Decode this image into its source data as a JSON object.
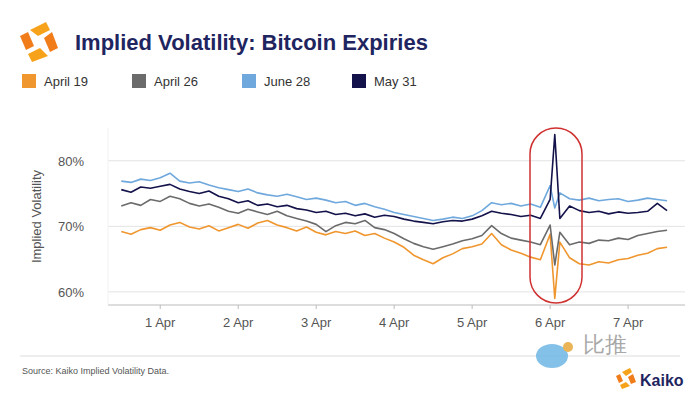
{
  "chart_data": {
    "type": "line",
    "title": "Implied Volatility: Bitcoin Expiries",
    "y_label": "Implied Volatility",
    "source": "Source: Kaiko Implied Volatility Data.",
    "brand": "Kaiko",
    "watermark": "比推",
    "x": [
      0.5,
      0.625,
      0.75,
      0.875,
      1.0,
      1.125,
      1.25,
      1.375,
      1.5,
      1.625,
      1.75,
      1.875,
      2.0,
      2.125,
      2.25,
      2.375,
      2.5,
      2.625,
      2.75,
      2.875,
      3.0,
      3.125,
      3.25,
      3.375,
      3.5,
      3.625,
      3.75,
      3.875,
      4.0,
      4.125,
      4.25,
      4.375,
      4.5,
      4.625,
      4.75,
      4.875,
      5.0,
      5.125,
      5.25,
      5.375,
      5.5,
      5.625,
      5.75,
      5.875,
      6.0,
      6.06,
      6.125,
      6.25,
      6.375,
      6.5,
      6.625,
      6.75,
      6.875,
      7.0,
      7.125,
      7.25,
      7.375,
      7.5
    ],
    "series": [
      {
        "name": "April 19",
        "color": "#f0962e",
        "values": [
          69.2,
          68.8,
          69.5,
          69.8,
          69.4,
          70.2,
          70.6,
          69.9,
          69.6,
          70.1,
          69.3,
          69.8,
          70.3,
          69.7,
          70.5,
          70.9,
          70.2,
          69.8,
          69.3,
          69.9,
          69.1,
          68.7,
          69.2,
          68.9,
          69.3,
          68.6,
          68.9,
          68.2,
          67.6,
          66.8,
          65.6,
          64.9,
          64.3,
          65.2,
          65.8,
          66.6,
          66.9,
          67.3,
          68.9,
          67.2,
          66.4,
          65.9,
          65.3,
          64.9,
          68.8,
          59.0,
          67.6,
          65.2,
          64.3,
          64.1,
          64.6,
          64.4,
          64.9,
          65.1,
          65.6,
          65.9,
          66.6,
          66.8
        ]
      },
      {
        "name": "April 26",
        "color": "#6b6b6b",
        "values": [
          73.1,
          73.6,
          73.2,
          74.1,
          73.8,
          74.6,
          74.2,
          73.5,
          73.1,
          73.4,
          72.9,
          72.3,
          72.0,
          72.6,
          72.2,
          71.8,
          72.3,
          71.6,
          71.2,
          70.8,
          70.3,
          69.2,
          70.1,
          70.6,
          70.4,
          70.9,
          69.8,
          69.5,
          68.9,
          68.1,
          67.4,
          66.9,
          66.5,
          66.9,
          67.3,
          67.8,
          68.1,
          68.6,
          70.1,
          68.9,
          68.2,
          67.9,
          67.6,
          67.2,
          70.2,
          64.1,
          69.1,
          67.2,
          67.6,
          67.4,
          67.9,
          67.8,
          68.2,
          68.0,
          68.6,
          68.9,
          69.2,
          69.4
        ]
      },
      {
        "name": "June 28",
        "color": "#6fa8dc",
        "values": [
          76.9,
          76.7,
          77.2,
          77.0,
          77.4,
          78.1,
          76.9,
          76.6,
          76.8,
          76.3,
          75.9,
          75.6,
          75.3,
          75.7,
          75.1,
          74.8,
          74.6,
          74.9,
          74.5,
          74.1,
          74.3,
          74.0,
          73.6,
          73.8,
          73.2,
          73.5,
          73.0,
          72.6,
          72.1,
          71.8,
          71.5,
          71.2,
          70.9,
          71.1,
          71.4,
          71.2,
          71.6,
          72.4,
          73.6,
          73.3,
          73.5,
          73.1,
          73.4,
          72.9,
          76.2,
          72.8,
          75.1,
          74.2,
          74.0,
          74.3,
          73.9,
          74.1,
          74.2,
          73.8,
          74.0,
          74.3,
          74.1,
          73.9
        ]
      },
      {
        "name": "May 31",
        "color": "#14124a",
        "values": [
          75.6,
          75.2,
          76.0,
          75.8,
          76.1,
          76.4,
          75.7,
          75.3,
          75.0,
          75.4,
          74.6,
          74.2,
          73.6,
          73.9,
          73.2,
          73.4,
          73.0,
          73.2,
          72.7,
          72.5,
          72.1,
          72.3,
          71.8,
          72.0,
          71.6,
          71.9,
          71.4,
          71.7,
          71.5,
          71.1,
          70.8,
          70.6,
          70.4,
          70.7,
          70.9,
          70.8,
          71.1,
          71.6,
          72.3,
          72.0,
          71.8,
          71.5,
          71.7,
          71.2,
          74.1,
          84.0,
          71.2,
          73.1,
          72.4,
          72.1,
          72.3,
          71.9,
          72.2,
          72.0,
          72.1,
          72.3,
          73.5,
          72.4
        ]
      }
    ],
    "xlim": [
      0.33,
      7.73
    ],
    "xticks": [
      {
        "value": 1,
        "label": "1 Apr"
      },
      {
        "value": 2,
        "label": "2 Apr"
      },
      {
        "value": 3,
        "label": "3 Apr"
      },
      {
        "value": 4,
        "label": "4 Apr"
      },
      {
        "value": 5,
        "label": "5 Apr"
      },
      {
        "value": 6,
        "label": "6 Apr"
      },
      {
        "value": 7,
        "label": "7 Apr"
      }
    ],
    "ylim": [
      58,
      85
    ],
    "yticks": [
      {
        "value": 60,
        "label": "60%"
      },
      {
        "value": 70,
        "label": "70%"
      },
      {
        "value": 80,
        "label": "80%"
      }
    ],
    "grid": true,
    "legend": "top-left"
  }
}
